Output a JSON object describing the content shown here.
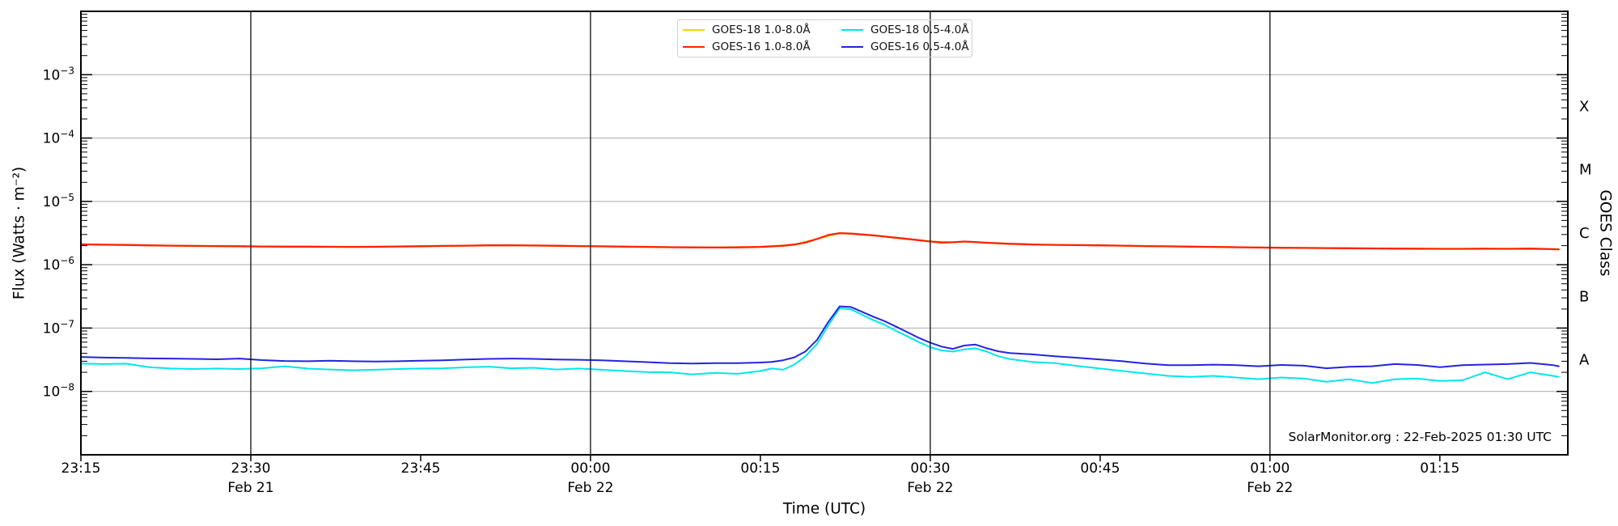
{
  "watermark": "SolarMonitor.org : 22-Feb-2025 01:30 UTC",
  "axes": {
    "y_left_label": "Flux (Watts · m⁻²)",
    "y_right_label": "GOES Class",
    "x_label": "Time (UTC)"
  },
  "colors": {
    "goes18_long": "#ffd300",
    "goes16_long": "#ff2200",
    "goes18_short": "#00e6ee",
    "goes16_short": "#2424e0",
    "gridline": "#b5b5b5",
    "vertical_line": "#0a0a0a",
    "frame": "#000000",
    "background": "#ffffff"
  },
  "legend": {
    "entries": [
      {
        "label": "GOES-18 1.0-8.0Å",
        "color_key": "goes18_long"
      },
      {
        "label": "GOES-18 0.5-4.0Å",
        "color_key": "goes18_short"
      },
      {
        "label": "GOES-16 1.0-8.0Å",
        "color_key": "goes16_long"
      },
      {
        "label": "GOES-16 0.5-4.0Å",
        "color_key": "goes16_short"
      }
    ]
  },
  "chart_data": {
    "type": "line",
    "title": "",
    "xlabel": "Time (UTC)",
    "ylabel": "Flux (Watts · m⁻²)",
    "ylabel_right": "GOES Class",
    "x_axis": {
      "unit": "minutes after 23:15 UTC Feb 21 2025",
      "total_minutes": 131.3,
      "tick_interval_minutes": 15,
      "ticks": [
        {
          "t": 0,
          "label": "23:15"
        },
        {
          "t": 15,
          "label": "23:30",
          "subline": "Feb 21"
        },
        {
          "t": 30,
          "label": "23:45"
        },
        {
          "t": 45,
          "label": "00:00",
          "subline": "Feb 22"
        },
        {
          "t": 60,
          "label": "00:15"
        },
        {
          "t": 75,
          "label": "00:30",
          "subline": "Feb 22"
        },
        {
          "t": 90,
          "label": "00:45"
        },
        {
          "t": 105,
          "label": "01:00",
          "subline": "Feb 22"
        },
        {
          "t": 120,
          "label": "01:15"
        }
      ],
      "vertical_lines_t": [
        15,
        45,
        75,
        105
      ]
    },
    "y_axis": {
      "scale": "log",
      "min": 1e-09,
      "max": 0.01,
      "labeled_exponents": [
        -3,
        -4,
        -5,
        -6,
        -7,
        -8
      ],
      "grid": true
    },
    "right_axis_classes": [
      {
        "label": "X",
        "log_center": -3.5
      },
      {
        "label": "M",
        "log_center": -4.5
      },
      {
        "label": "C",
        "log_center": -5.5
      },
      {
        "label": "B",
        "log_center": -6.5
      },
      {
        "label": "A",
        "log_center": -7.5
      }
    ],
    "series": [
      {
        "name": "GOES-18 1.0-8.0Å",
        "key": "goes18_long",
        "color_key": "goes18_long",
        "width": 2.0,
        "note": "coincident with GOES-16 1.0-8.0Å and hidden beneath it",
        "points": [
          [
            0,
            2.1e-06
          ],
          [
            6,
            2.02e-06
          ],
          [
            12,
            1.97e-06
          ],
          [
            18,
            1.93e-06
          ],
          [
            24,
            1.91e-06
          ],
          [
            30,
            1.96e-06
          ],
          [
            36,
            2.02e-06
          ],
          [
            42,
            1.99e-06
          ],
          [
            48,
            1.93e-06
          ],
          [
            54,
            1.88e-06
          ],
          [
            60,
            1.91e-06
          ],
          [
            63,
            2.08e-06
          ],
          [
            65,
            2.55e-06
          ],
          [
            67,
            3.15e-06
          ],
          [
            69,
            3e-06
          ],
          [
            71,
            2.78e-06
          ],
          [
            73,
            2.55e-06
          ],
          [
            75,
            2.33e-06
          ],
          [
            77,
            2.26e-06
          ],
          [
            78,
            2.32e-06
          ],
          [
            80,
            2.22e-06
          ],
          [
            84,
            2.09e-06
          ],
          [
            90,
            2.02e-06
          ],
          [
            96,
            1.95e-06
          ],
          [
            102,
            1.89e-06
          ],
          [
            108,
            1.84e-06
          ],
          [
            114,
            1.81e-06
          ],
          [
            120,
            1.78e-06
          ],
          [
            126,
            1.78e-06
          ],
          [
            130.5,
            1.75e-06
          ]
        ]
      },
      {
        "name": "GOES-16 1.0-8.0Å",
        "key": "goes16_long",
        "color_key": "goes16_long",
        "width": 2.3,
        "points": [
          [
            0,
            2.1e-06
          ],
          [
            2,
            2.07e-06
          ],
          [
            4,
            2.05e-06
          ],
          [
            6,
            2.02e-06
          ],
          [
            8,
            2e-06
          ],
          [
            10,
            1.98e-06
          ],
          [
            12,
            1.97e-06
          ],
          [
            14,
            1.96e-06
          ],
          [
            16,
            1.94e-06
          ],
          [
            18,
            1.93e-06
          ],
          [
            20,
            1.93e-06
          ],
          [
            22,
            1.92e-06
          ],
          [
            24,
            1.91e-06
          ],
          [
            26,
            1.92e-06
          ],
          [
            28,
            1.94e-06
          ],
          [
            30,
            1.96e-06
          ],
          [
            32,
            1.98e-06
          ],
          [
            34,
            2e-06
          ],
          [
            36,
            2.02e-06
          ],
          [
            38,
            2.03e-06
          ],
          [
            40,
            2.01e-06
          ],
          [
            42,
            1.99e-06
          ],
          [
            44,
            1.97e-06
          ],
          [
            46,
            1.95e-06
          ],
          [
            48,
            1.93e-06
          ],
          [
            50,
            1.91e-06
          ],
          [
            52,
            1.89e-06
          ],
          [
            54,
            1.88e-06
          ],
          [
            56,
            1.87e-06
          ],
          [
            58,
            1.88e-06
          ],
          [
            60,
            1.91e-06
          ],
          [
            62,
            1.99e-06
          ],
          [
            63,
            2.08e-06
          ],
          [
            64,
            2.25e-06
          ],
          [
            65,
            2.55e-06
          ],
          [
            66,
            2.95e-06
          ],
          [
            67,
            3.15e-06
          ],
          [
            68,
            3.1e-06
          ],
          [
            69,
            3e-06
          ],
          [
            70,
            2.9e-06
          ],
          [
            71,
            2.78e-06
          ],
          [
            72,
            2.67e-06
          ],
          [
            73,
            2.55e-06
          ],
          [
            74,
            2.44e-06
          ],
          [
            75,
            2.33e-06
          ],
          [
            76,
            2.24e-06
          ],
          [
            77,
            2.26e-06
          ],
          [
            78,
            2.32e-06
          ],
          [
            79,
            2.28e-06
          ],
          [
            80,
            2.22e-06
          ],
          [
            82,
            2.14e-06
          ],
          [
            84,
            2.09e-06
          ],
          [
            86,
            2.06e-06
          ],
          [
            88,
            2.04e-06
          ],
          [
            90,
            2.02e-06
          ],
          [
            92,
            2e-06
          ],
          [
            94,
            1.97e-06
          ],
          [
            96,
            1.95e-06
          ],
          [
            98,
            1.93e-06
          ],
          [
            100,
            1.91e-06
          ],
          [
            102,
            1.89e-06
          ],
          [
            104,
            1.87e-06
          ],
          [
            106,
            1.85e-06
          ],
          [
            108,
            1.84e-06
          ],
          [
            110,
            1.83e-06
          ],
          [
            112,
            1.82e-06
          ],
          [
            114,
            1.81e-06
          ],
          [
            116,
            1.8e-06
          ],
          [
            118,
            1.79e-06
          ],
          [
            120,
            1.78e-06
          ],
          [
            122,
            1.78e-06
          ],
          [
            124,
            1.79e-06
          ],
          [
            126,
            1.78e-06
          ],
          [
            128,
            1.8e-06
          ],
          [
            130,
            1.76e-06
          ],
          [
            130.5,
            1.75e-06
          ]
        ]
      },
      {
        "name": "GOES-18 0.5-4.0Å",
        "key": "goes18_short",
        "color_key": "goes18_short",
        "width": 2.0,
        "points": [
          [
            0,
            2.75e-08
          ],
          [
            2,
            2.7e-08
          ],
          [
            4,
            2.74e-08
          ],
          [
            6,
            2.42e-08
          ],
          [
            8,
            2.3e-08
          ],
          [
            10,
            2.26e-08
          ],
          [
            12,
            2.3e-08
          ],
          [
            14,
            2.26e-08
          ],
          [
            16,
            2.32e-08
          ],
          [
            18,
            2.5e-08
          ],
          [
            20,
            2.3e-08
          ],
          [
            22,
            2.22e-08
          ],
          [
            24,
            2.16e-08
          ],
          [
            26,
            2.2e-08
          ],
          [
            28,
            2.26e-08
          ],
          [
            30,
            2.3e-08
          ],
          [
            32,
            2.32e-08
          ],
          [
            34,
            2.4e-08
          ],
          [
            36,
            2.46e-08
          ],
          [
            38,
            2.32e-08
          ],
          [
            40,
            2.36e-08
          ],
          [
            42,
            2.22e-08
          ],
          [
            44,
            2.3e-08
          ],
          [
            46,
            2.2e-08
          ],
          [
            48,
            2.1e-08
          ],
          [
            50,
            2.02e-08
          ],
          [
            52,
            2e-08
          ],
          [
            54,
            1.86e-08
          ],
          [
            56,
            1.96e-08
          ],
          [
            58,
            1.9e-08
          ],
          [
            60,
            2.1e-08
          ],
          [
            61,
            2.3e-08
          ],
          [
            62,
            2.2e-08
          ],
          [
            63,
            2.65e-08
          ],
          [
            64,
            3.6e-08
          ],
          [
            65,
            5.6e-08
          ],
          [
            66,
            1.1e-07
          ],
          [
            67,
            2.05e-07
          ],
          [
            68,
            1.98e-07
          ],
          [
            69,
            1.62e-07
          ],
          [
            70,
            1.33e-07
          ],
          [
            71,
            1.12e-07
          ],
          [
            72,
            9e-08
          ],
          [
            73,
            7.4e-08
          ],
          [
            74,
            6e-08
          ],
          [
            75,
            5e-08
          ],
          [
            76,
            4.45e-08
          ],
          [
            77,
            4.25e-08
          ],
          [
            78,
            4.6e-08
          ],
          [
            79,
            4.8e-08
          ],
          [
            80,
            4.25e-08
          ],
          [
            81,
            3.6e-08
          ],
          [
            82,
            3.25e-08
          ],
          [
            84,
            2.92e-08
          ],
          [
            86,
            2.8e-08
          ],
          [
            88,
            2.52e-08
          ],
          [
            90,
            2.3e-08
          ],
          [
            92,
            2.1e-08
          ],
          [
            94,
            1.92e-08
          ],
          [
            96,
            1.76e-08
          ],
          [
            98,
            1.7e-08
          ],
          [
            100,
            1.76e-08
          ],
          [
            102,
            1.66e-08
          ],
          [
            104,
            1.56e-08
          ],
          [
            106,
            1.66e-08
          ],
          [
            108,
            1.6e-08
          ],
          [
            110,
            1.42e-08
          ],
          [
            112,
            1.56e-08
          ],
          [
            114,
            1.36e-08
          ],
          [
            116,
            1.56e-08
          ],
          [
            118,
            1.6e-08
          ],
          [
            120,
            1.46e-08
          ],
          [
            122,
            1.5e-08
          ],
          [
            124,
            2e-08
          ],
          [
            126,
            1.56e-08
          ],
          [
            128,
            2e-08
          ],
          [
            130,
            1.76e-08
          ],
          [
            130.5,
            1.7e-08
          ]
        ]
      },
      {
        "name": "GOES-16 0.5-4.0Å",
        "key": "goes16_short",
        "color_key": "goes16_short",
        "width": 2.0,
        "points": [
          [
            0,
            3.5e-08
          ],
          [
            2,
            3.42e-08
          ],
          [
            4,
            3.38e-08
          ],
          [
            6,
            3.32e-08
          ],
          [
            8,
            3.3e-08
          ],
          [
            10,
            3.26e-08
          ],
          [
            12,
            3.22e-08
          ],
          [
            14,
            3.3e-08
          ],
          [
            16,
            3.12e-08
          ],
          [
            18,
            3.02e-08
          ],
          [
            20,
            3e-08
          ],
          [
            22,
            3.06e-08
          ],
          [
            24,
            3e-08
          ],
          [
            26,
            2.96e-08
          ],
          [
            28,
            3e-08
          ],
          [
            30,
            3.05e-08
          ],
          [
            32,
            3.1e-08
          ],
          [
            34,
            3.2e-08
          ],
          [
            36,
            3.26e-08
          ],
          [
            38,
            3.3e-08
          ],
          [
            40,
            3.26e-08
          ],
          [
            42,
            3.2e-08
          ],
          [
            44,
            3.16e-08
          ],
          [
            46,
            3.1e-08
          ],
          [
            48,
            3e-08
          ],
          [
            50,
            2.9e-08
          ],
          [
            52,
            2.8e-08
          ],
          [
            54,
            2.76e-08
          ],
          [
            56,
            2.8e-08
          ],
          [
            58,
            2.8e-08
          ],
          [
            60,
            2.86e-08
          ],
          [
            61,
            2.92e-08
          ],
          [
            62,
            3.1e-08
          ],
          [
            63,
            3.45e-08
          ],
          [
            64,
            4.3e-08
          ],
          [
            65,
            6.5e-08
          ],
          [
            66,
            1.25e-07
          ],
          [
            67,
            2.2e-07
          ],
          [
            68,
            2.15e-07
          ],
          [
            69,
            1.8e-07
          ],
          [
            70,
            1.5e-07
          ],
          [
            71,
            1.28e-07
          ],
          [
            72,
            1.05e-07
          ],
          [
            73,
            8.6e-08
          ],
          [
            74,
            7e-08
          ],
          [
            75,
            5.9e-08
          ],
          [
            76,
            5.1e-08
          ],
          [
            77,
            4.7e-08
          ],
          [
            78,
            5.3e-08
          ],
          [
            79,
            5.5e-08
          ],
          [
            80,
            4.8e-08
          ],
          [
            81,
            4.3e-08
          ],
          [
            82,
            4.05e-08
          ],
          [
            84,
            3.85e-08
          ],
          [
            86,
            3.6e-08
          ],
          [
            88,
            3.4e-08
          ],
          [
            90,
            3.2e-08
          ],
          [
            92,
            3e-08
          ],
          [
            94,
            2.75e-08
          ],
          [
            96,
            2.6e-08
          ],
          [
            98,
            2.6e-08
          ],
          [
            100,
            2.65e-08
          ],
          [
            102,
            2.6e-08
          ],
          [
            104,
            2.5e-08
          ],
          [
            106,
            2.62e-08
          ],
          [
            108,
            2.55e-08
          ],
          [
            110,
            2.32e-08
          ],
          [
            112,
            2.45e-08
          ],
          [
            114,
            2.5e-08
          ],
          [
            116,
            2.7e-08
          ],
          [
            118,
            2.62e-08
          ],
          [
            120,
            2.42e-08
          ],
          [
            122,
            2.6e-08
          ],
          [
            124,
            2.66e-08
          ],
          [
            126,
            2.7e-08
          ],
          [
            128,
            2.82e-08
          ],
          [
            130,
            2.6e-08
          ],
          [
            130.5,
            2.5e-08
          ]
        ]
      }
    ]
  }
}
